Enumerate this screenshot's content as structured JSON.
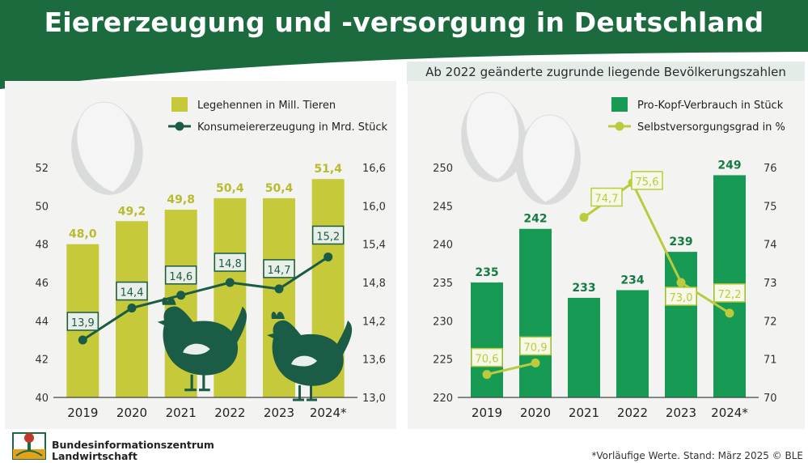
{
  "title": "Eiererzeugung und -versorgung in Deutschland",
  "subtitle": "Ab 2022 geänderte zugrunde liegende Bevölkerungszahlen",
  "footnote": "*Vorläufige Werte. Stand: März 2025 © BLE",
  "organization": "Bundesinformationszentrum Landwirtschaft",
  "colors": {
    "header": "#1c6b3f",
    "bar_left": "#c5c93a",
    "line_left": "#1b5c46",
    "bar_right": "#179a54",
    "line_right": "#bccb3b",
    "label_left_bar": "#b7bc2d",
    "label_right_bar": "#167a44",
    "hen": "#1b5c46"
  },
  "icons": [
    "egg-icon",
    "hen-icon"
  ],
  "chart_data": [
    {
      "type": "bar",
      "categories": [
        "2019",
        "2020",
        "2021",
        "2022",
        "2023",
        "2024*"
      ],
      "series": [
        {
          "name": "Legehennen in Mill. Tieren",
          "type": "bar",
          "axis": "left",
          "values": [
            48.0,
            49.2,
            49.8,
            50.4,
            50.4,
            51.4
          ],
          "labels": [
            "48,0",
            "49,2",
            "49,8",
            "50,4",
            "50,4",
            "51,4"
          ]
        },
        {
          "name": "Konsumeiererzeugung in Mrd. Stück",
          "type": "line",
          "axis": "right",
          "values": [
            13.9,
            14.4,
            14.6,
            14.8,
            14.7,
            15.2
          ],
          "labels": [
            "13,9",
            "14,4",
            "14,6",
            "14,8",
            "14,7",
            "15,2"
          ]
        }
      ],
      "y_left": {
        "min": 40,
        "max": 52,
        "ticks": [
          "40",
          "42",
          "44",
          "46",
          "48",
          "50",
          "52"
        ]
      },
      "y_right": {
        "min": 13.0,
        "max": 16.6,
        "ticks": [
          "13,0",
          "13,6",
          "14,2",
          "14,8",
          "15,4",
          "16,0",
          "16,6"
        ]
      },
      "legend_position": "top-right",
      "grid": false
    },
    {
      "type": "bar",
      "categories": [
        "2019",
        "2020",
        "2021",
        "2022",
        "2023",
        "2024*"
      ],
      "series": [
        {
          "name": "Pro-Kopf-Verbrauch in Stück",
          "type": "bar",
          "axis": "left",
          "values": [
            235,
            242,
            233,
            234,
            239,
            249
          ],
          "labels": [
            "235",
            "242",
            "233",
            "234",
            "239",
            "249"
          ]
        },
        {
          "name": "Selbstversorgungsgrad in %",
          "type": "line",
          "axis": "right",
          "values": [
            70.6,
            70.9,
            74.7,
            75.6,
            73.0,
            72.2
          ],
          "labels": [
            "70,6",
            "70,9",
            "74,7",
            "75,6",
            "73,0",
            "72,2"
          ]
        }
      ],
      "y_left": {
        "min": 220,
        "max": 250,
        "ticks": [
          "220",
          "225",
          "230",
          "235",
          "240",
          "245",
          "250"
        ]
      },
      "y_right": {
        "min": 70,
        "max": 76,
        "ticks": [
          "70",
          "71",
          "72",
          "73",
          "74",
          "75",
          "76"
        ]
      },
      "legend_position": "top-right",
      "grid": false
    }
  ]
}
